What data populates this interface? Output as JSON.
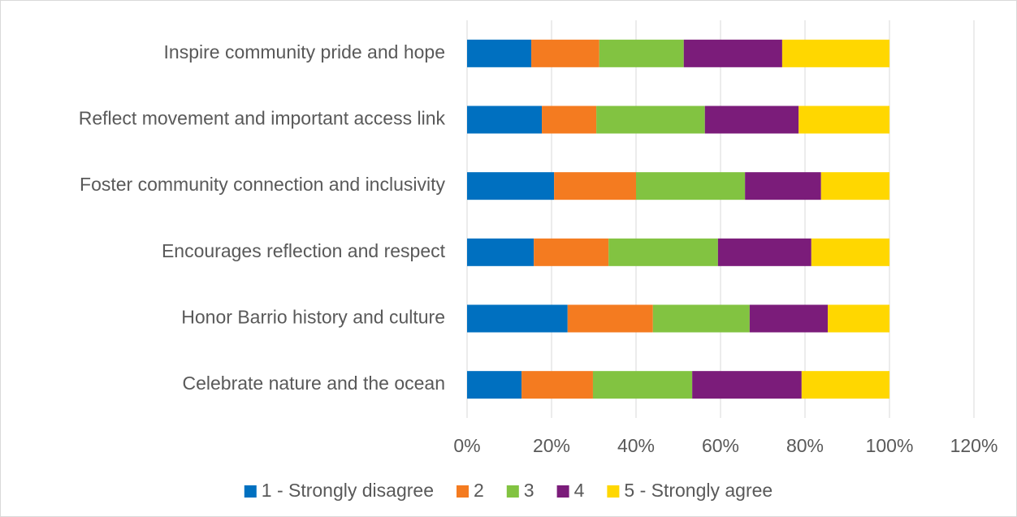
{
  "chart_data": {
    "type": "stacked_bar_horizontal",
    "categories": [
      "Inspire community pride and hope",
      "Reflect movement and important access link",
      "Foster community connection and inclusivity",
      "Encourages reflection and respect",
      "Honor Barrio history and culture",
      "Celebrate nature and the ocean"
    ],
    "series": [
      {
        "name": "1 - Strongly disagree",
        "color": "#0070c0",
        "values": [
          15.2,
          17.7,
          20.6,
          15.8,
          23.8,
          12.9
        ]
      },
      {
        "name": "2",
        "color": "#f47b20",
        "values": [
          16.1,
          12.9,
          19.4,
          17.7,
          20.2,
          16.9
        ]
      },
      {
        "name": "3",
        "color": "#82c341",
        "values": [
          20.0,
          25.7,
          25.8,
          25.9,
          22.9,
          23.5
        ]
      },
      {
        "name": "4",
        "color": "#7b1c7a",
        "values": [
          23.3,
          22.2,
          18.0,
          22.1,
          18.5,
          25.9
        ]
      },
      {
        "name": "5 - Strongly agree",
        "color": "#ffd700",
        "values": [
          25.4,
          21.5,
          16.2,
          18.5,
          14.6,
          20.8
        ]
      }
    ],
    "xlim": [
      0,
      120
    ],
    "xticks": [
      {
        "value": 0,
        "label": "0%"
      },
      {
        "value": 20,
        "label": "20%"
      },
      {
        "value": 40,
        "label": "40%"
      },
      {
        "value": 60,
        "label": "60%"
      },
      {
        "value": 80,
        "label": "80%"
      },
      {
        "value": 100,
        "label": "100%"
      },
      {
        "value": 120,
        "label": "120%"
      }
    ],
    "grid": true,
    "legend": "bottom"
  }
}
